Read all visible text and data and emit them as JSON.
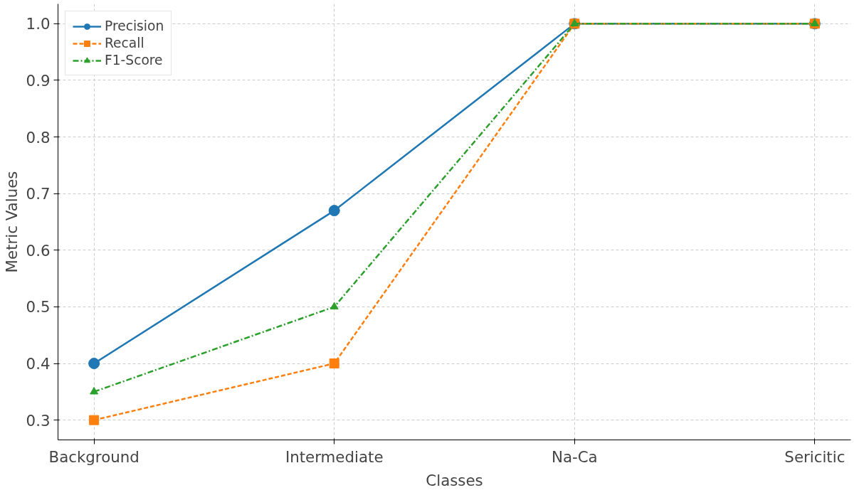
{
  "chart_data": {
    "type": "line",
    "xlabel": "Classes",
    "ylabel": "Metric Values",
    "categories": [
      "Background",
      "Intermediate",
      "Na-Ca",
      "Sericitic"
    ],
    "series": [
      {
        "name": "Precision",
        "color": "#1f77b4",
        "values": [
          0.4,
          0.67,
          1.0,
          1.0
        ],
        "marker": "circle",
        "line_style": "solid"
      },
      {
        "name": "Recall",
        "color": "#ff7f0e",
        "values": [
          0.3,
          0.4,
          1.0,
          1.0
        ],
        "marker": "square",
        "line_style": "dashed"
      },
      {
        "name": "F1-Score",
        "color": "#2ca02c",
        "values": [
          0.35,
          0.5,
          1.0,
          1.0
        ],
        "marker": "triangle",
        "line_style": "dashdot"
      }
    ],
    "ylim": [
      0.265,
      1.035
    ],
    "yticks": [
      0.3,
      0.4,
      0.5,
      0.6,
      0.7,
      0.8,
      0.9,
      {
        "value": 1.0,
        "label": "1.0"
      }
    ],
    "grid": true,
    "legend": "top left"
  }
}
